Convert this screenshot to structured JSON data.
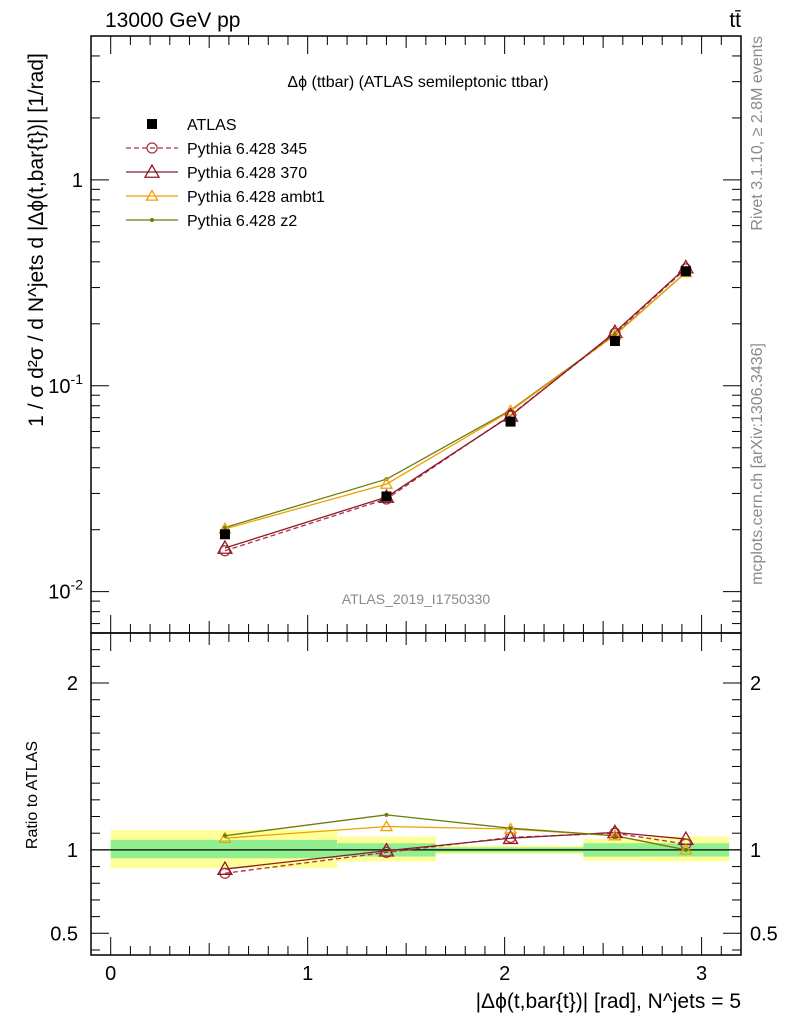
{
  "header": {
    "energy_label": "13000 GeV pp",
    "process_label": "tt̄"
  },
  "side_labels": {
    "rivet": "Rivet 3.1.10, ≥ 2.8M events",
    "mcplots": "mcplots.cern.ch [arXiv:1306.3436]"
  },
  "chart_data": [
    {
      "type": "line",
      "panel": "main",
      "title": "Δϕ (ttbar) (ATLAS semileptonic ttbar)",
      "ylabel": "1 / σ d²σ / d N^jets d |Δϕ(t,bar{t})| [1/rad]",
      "yscale": "log",
      "ylim": [
        0.0063,
        5.0
      ],
      "xlim": [
        -0.1,
        3.2
      ],
      "y_ticks": [
        {
          "value": 0.01,
          "label": "10^-2"
        },
        {
          "value": 0.1,
          "label": "10^-1"
        },
        {
          "value": 1,
          "label": "1"
        }
      ],
      "watermark": "ATLAS_2019_I1750330",
      "legend_position": "top-left",
      "x": [
        0.58,
        1.4,
        2.03,
        2.56,
        2.92
      ],
      "series": [
        {
          "name": "ATLAS",
          "style": "data",
          "color": "#000000",
          "values": [
            0.019,
            0.029,
            0.067,
            0.165,
            0.36
          ]
        },
        {
          "name": "Pythia 6.428 345",
          "style": "dashed-circle",
          "color": "#b03040",
          "values": [
            0.0158,
            0.0282,
            0.072,
            0.18,
            0.37
          ]
        },
        {
          "name": "Pythia 6.428 370",
          "style": "solid-triangle",
          "color": "#8b1a2b",
          "values": [
            0.0163,
            0.0288,
            0.0715,
            0.182,
            0.375
          ]
        },
        {
          "name": "Pythia 6.428 ambt1",
          "style": "solid-triangle",
          "color": "#f0a000",
          "values": [
            0.0202,
            0.0333,
            0.0755,
            0.176,
            0.355
          ]
        },
        {
          "name": "Pythia 6.428 z2",
          "style": "solid-dot",
          "color": "#6b7c10",
          "values": [
            0.0205,
            0.0352,
            0.0762,
            0.177,
            0.355
          ]
        }
      ]
    },
    {
      "type": "line",
      "panel": "ratio",
      "ylabel": "Ratio to ATLAS",
      "xlabel": "|Δϕ(t,bar{t})| [rad], N^jets = 5",
      "ylim": [
        0.37,
        2.3
      ],
      "xlim": [
        -0.1,
        3.2
      ],
      "y_ticks": [
        {
          "value": 0.5,
          "label": "0.5"
        },
        {
          "value": 1,
          "label": "1"
        },
        {
          "value": 2,
          "label": "2"
        }
      ],
      "x_ticks": [
        {
          "value": 0,
          "label": "0"
        },
        {
          "value": 1,
          "label": "1"
        },
        {
          "value": 2,
          "label": "2"
        },
        {
          "value": 3,
          "label": "3"
        }
      ],
      "uncertainty_bins": [
        {
          "x0": 0.0,
          "x1": 1.15,
          "inner_lo": 0.95,
          "inner_hi": 1.06,
          "outer_lo": 0.89,
          "outer_hi": 1.12
        },
        {
          "x0": 1.15,
          "x1": 1.65,
          "inner_lo": 0.96,
          "inner_hi": 1.04,
          "outer_lo": 0.93,
          "outer_hi": 1.08
        },
        {
          "x0": 1.65,
          "x1": 2.4,
          "inner_lo": 0.985,
          "inner_hi": 1.015,
          "outer_lo": 0.975,
          "outer_hi": 1.025
        },
        {
          "x0": 2.4,
          "x1": 2.7,
          "inner_lo": 0.96,
          "inner_hi": 1.04,
          "outer_lo": 0.935,
          "outer_hi": 1.065
        },
        {
          "x0": 2.7,
          "x1": 3.14,
          "inner_lo": 0.96,
          "inner_hi": 1.04,
          "outer_lo": 0.93,
          "outer_hi": 1.08
        }
      ],
      "x": [
        0.58,
        1.4,
        2.03,
        2.56,
        2.92
      ],
      "series": [
        {
          "name": "Pythia 6.428 345",
          "style": "dashed-circle",
          "color": "#b03040",
          "values": [
            0.86,
            0.985,
            1.075,
            1.1,
            1.035
          ]
        },
        {
          "name": "Pythia 6.428 370",
          "style": "solid-triangle",
          "color": "#8b1a2b",
          "values": [
            0.885,
            0.995,
            1.07,
            1.105,
            1.065
          ]
        },
        {
          "name": "Pythia 6.428 ambt1",
          "style": "solid-triangle",
          "color": "#f0a000",
          "values": [
            1.07,
            1.14,
            1.125,
            1.085,
            1.0
          ]
        },
        {
          "name": "Pythia 6.428 z2",
          "style": "solid-dot",
          "color": "#6b7c10",
          "values": [
            1.085,
            1.21,
            1.13,
            1.085,
            1.0
          ]
        }
      ]
    }
  ]
}
